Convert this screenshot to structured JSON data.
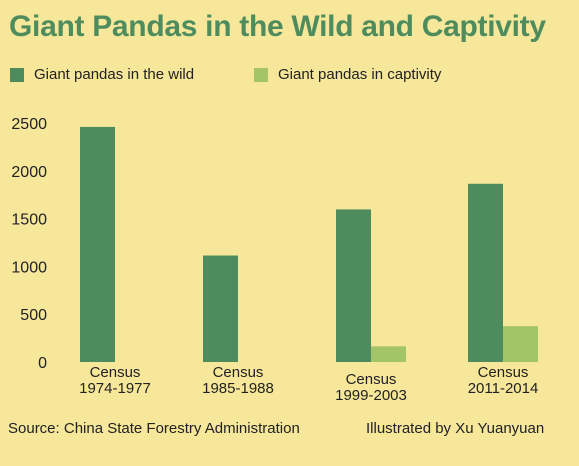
{
  "colors": {
    "background": "#f6e79a",
    "title": "#4e8c5e",
    "wild": "#4e8c5e",
    "captivity": "#a4c46a"
  },
  "chart_data": {
    "type": "bar",
    "title": "Giant Pandas in the Wild and Captivity",
    "categories": [
      [
        "Census",
        "1974-1977"
      ],
      [
        "Census",
        "1985-1988"
      ],
      [
        "Census",
        "1999-2003"
      ],
      [
        "Census",
        "2011-2014"
      ]
    ],
    "series": [
      {
        "name": "Giant pandas in the wild",
        "values": [
          2459,
          1114,
          1596,
          1864
        ]
      },
      {
        "name": "Giant pandas in captivity",
        "values": [
          0,
          0,
          164,
          375
        ]
      }
    ],
    "ylim": [
      0,
      2500
    ],
    "yticks": [
      0,
      500,
      1000,
      1500,
      2000,
      2500
    ],
    "grid": false,
    "legend_position": "top-left"
  },
  "footer": {
    "source": "Source:  China State Forestry Administration",
    "credit": "Illustrated by Xu Yuanyuan"
  }
}
